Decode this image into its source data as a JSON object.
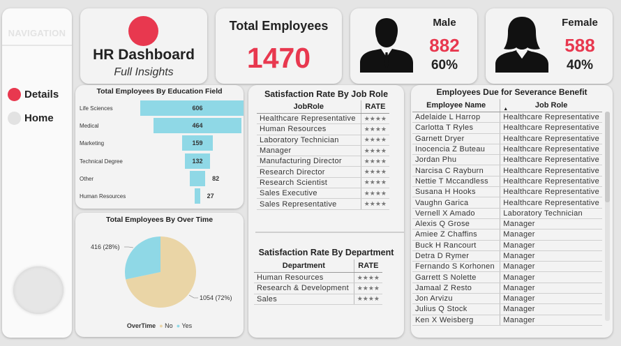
{
  "nav": {
    "title": "NAVIGATION",
    "items": [
      {
        "label": "Details",
        "color": "#e8384f"
      },
      {
        "label": "Home",
        "color": "#e2e2e2"
      }
    ]
  },
  "header": {
    "title": "HR Dashboard",
    "subtitle": "Full Insights"
  },
  "kpis": {
    "total_title": "Total Employees",
    "total_value": "1470",
    "male_label": "Male",
    "male_count": "882",
    "male_pct": "60%",
    "female_label": "Female",
    "female_count": "588",
    "female_pct": "40%"
  },
  "colors": {
    "accent": "#e8384f",
    "bar": "#8fd8e6",
    "pie_no": "#ead5a6",
    "pie_yes": "#8fd8e6"
  },
  "chart_data": [
    {
      "type": "bar",
      "title": "Total Employees By Education Field",
      "categories": [
        "Life Sciences",
        "Medical",
        "Marketing",
        "Technical Degree",
        "Other",
        "Human Resources"
      ],
      "values": [
        606,
        464,
        159,
        132,
        82,
        27
      ]
    },
    {
      "type": "pie",
      "title": "Total Employees By Over Time",
      "legend_title": "OverTime",
      "labels": [
        "No",
        "Yes"
      ],
      "values": [
        1054,
        416
      ],
      "percent_labels": [
        "1054 (72%)",
        "416 (28%)"
      ]
    }
  ],
  "job_role_table": {
    "title": "Satisfaction Rate By Job Role",
    "columns": [
      "JobRole",
      "RATE"
    ],
    "rows": [
      {
        "role": "Healthcare Representative",
        "rate": "★★★★"
      },
      {
        "role": "Human Resources",
        "rate": "★★★★"
      },
      {
        "role": "Laboratory Technician",
        "rate": "★★★★"
      },
      {
        "role": "Manager",
        "rate": "★★★★"
      },
      {
        "role": "Manufacturing Director",
        "rate": "★★★★"
      },
      {
        "role": "Research Director",
        "rate": "★★★★"
      },
      {
        "role": "Research Scientist",
        "rate": "★★★★"
      },
      {
        "role": "Sales Executive",
        "rate": "★★★★"
      },
      {
        "role": "Sales Representative",
        "rate": "★★★★"
      }
    ]
  },
  "dept_table": {
    "title": "Satisfaction Rate By Department",
    "columns": [
      "Department",
      "RATE"
    ],
    "rows": [
      {
        "dept": "Human Resources",
        "rate": "★★★★"
      },
      {
        "dept": "Research & Development",
        "rate": "★★★★"
      },
      {
        "dept": "Sales",
        "rate": "★★★★"
      }
    ]
  },
  "severance_table": {
    "title": "Employees Due for Severance Benefit",
    "columns": [
      "Employee Name",
      "Job Role"
    ],
    "rows": [
      {
        "name": "Adelaide L Harrop",
        "role": "Healthcare Representative"
      },
      {
        "name": "Carlotta T Ryles",
        "role": "Healthcare Representative"
      },
      {
        "name": "Garnett Dryer",
        "role": "Healthcare Representative"
      },
      {
        "name": "Inocencia Z Buteau",
        "role": "Healthcare Representative"
      },
      {
        "name": "Jordan Phu",
        "role": "Healthcare Representative"
      },
      {
        "name": "Narcisa C Rayburn",
        "role": "Healthcare Representative"
      },
      {
        "name": "Nettie T Mccandless",
        "role": "Healthcare Representative"
      },
      {
        "name": "Susana H Hooks",
        "role": "Healthcare Representative"
      },
      {
        "name": "Vaughn Garica",
        "role": "Healthcare Representative"
      },
      {
        "name": "Vernell X Amado",
        "role": "Laboratory Technician"
      },
      {
        "name": "Alexis Q Grose",
        "role": "Manager"
      },
      {
        "name": "Amiee Z Chaffins",
        "role": "Manager"
      },
      {
        "name": "Buck H Rancourt",
        "role": "Manager"
      },
      {
        "name": "Detra D Rymer",
        "role": "Manager"
      },
      {
        "name": "Fernando S Korhonen",
        "role": "Manager"
      },
      {
        "name": "Garrett S Nolette",
        "role": "Manager"
      },
      {
        "name": "Jamaal Z Resto",
        "role": "Manager"
      },
      {
        "name": "Jon Arvizu",
        "role": "Manager"
      },
      {
        "name": "Julius Q Stock",
        "role": "Manager"
      },
      {
        "name": "Ken X Weisberg",
        "role": "Manager"
      }
    ]
  }
}
